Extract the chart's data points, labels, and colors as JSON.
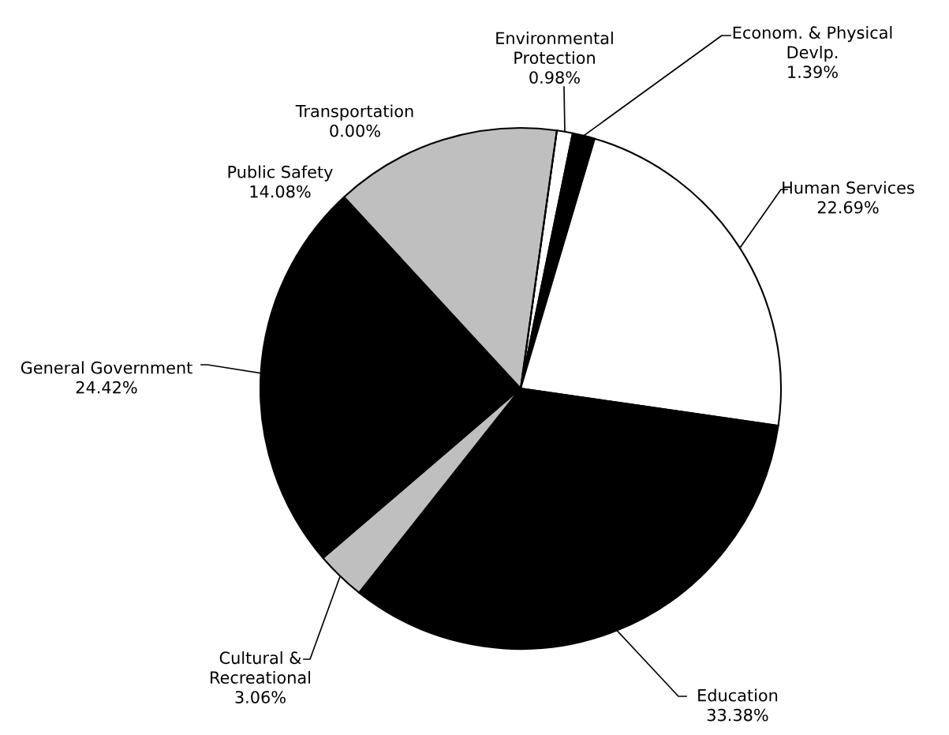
{
  "chart_data": {
    "type": "pie",
    "categories": [
      "Environmental\nProtection",
      "Econom. & Physical\nDevlp.",
      "Human Services",
      "Education",
      "Cultural &\nRecreational",
      "General Government",
      "Public Safety",
      "Transportation"
    ],
    "values": [
      0.98,
      1.39,
      22.69,
      33.38,
      3.06,
      24.42,
      14.08,
      0.0
    ],
    "colors": [
      "#ffffff",
      "#000000",
      "#ffffff",
      "#000000",
      "#bfbfbf",
      "#000000",
      "#bfbfbf",
      "#ffffff"
    ],
    "value_labels": [
      "0.98%",
      "1.39%",
      "22.69%",
      "33.38%",
      "3.06%",
      "24.42%",
      "14.08%",
      "0.00%"
    ],
    "legend": false
  }
}
